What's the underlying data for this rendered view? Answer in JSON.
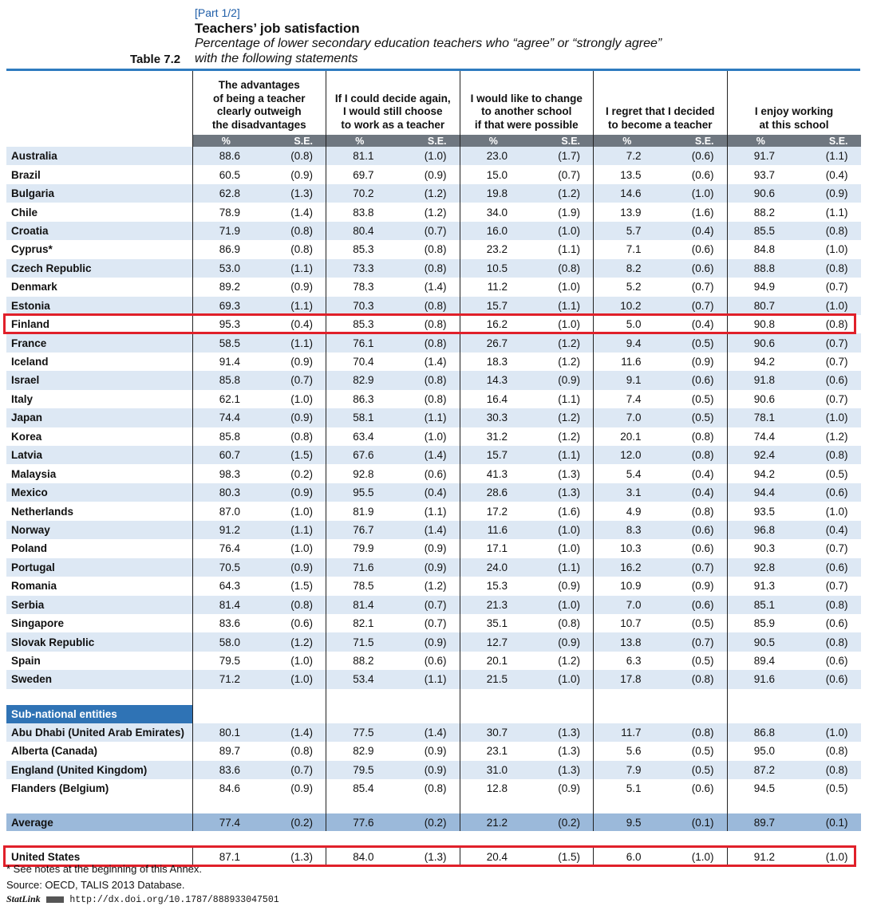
{
  "header": {
    "part": "[Part 1/2]",
    "title": "Teachers’ job satisfaction",
    "subtitle_line1": "Percentage of lower secondary education teachers who “agree” or “strongly agree”",
    "subtitle_line2": "with the following statements",
    "table_number": "Table 7.2"
  },
  "questions": [
    "The advantages\nof being a teacher\nclearly outweigh\nthe disadvantages",
    "If I could decide again,\nI would still choose\nto work as a teacher",
    "I would like to change\nto another school\nif that were possible",
    "I regret that I decided\nto become a teacher",
    "I enjoy working\nat this school"
  ],
  "subheader": {
    "pct": "%",
    "se": "S.E."
  },
  "countries": [
    {
      "name": "Australia",
      "values": [
        "88.6",
        "(0.8)",
        "81.1",
        "(1.0)",
        "23.0",
        "(1.7)",
        "7.2",
        "(0.6)",
        "91.7",
        "(1.1)"
      ]
    },
    {
      "name": "Brazil",
      "values": [
        "60.5",
        "(0.9)",
        "69.7",
        "(0.9)",
        "15.0",
        "(0.7)",
        "13.5",
        "(0.6)",
        "93.7",
        "(0.4)"
      ]
    },
    {
      "name": "Bulgaria",
      "values": [
        "62.8",
        "(1.3)",
        "70.2",
        "(1.2)",
        "19.8",
        "(1.2)",
        "14.6",
        "(1.0)",
        "90.6",
        "(0.9)"
      ]
    },
    {
      "name": "Chile",
      "values": [
        "78.9",
        "(1.4)",
        "83.8",
        "(1.2)",
        "34.0",
        "(1.9)",
        "13.9",
        "(1.6)",
        "88.2",
        "(1.1)"
      ]
    },
    {
      "name": "Croatia",
      "values": [
        "71.9",
        "(0.8)",
        "80.4",
        "(0.7)",
        "16.0",
        "(1.0)",
        "5.7",
        "(0.4)",
        "85.5",
        "(0.8)"
      ]
    },
    {
      "name": "Cyprus*",
      "values": [
        "86.9",
        "(0.8)",
        "85.3",
        "(0.8)",
        "23.2",
        "(1.1)",
        "7.1",
        "(0.6)",
        "84.8",
        "(1.0)"
      ]
    },
    {
      "name": "Czech Republic",
      "values": [
        "53.0",
        "(1.1)",
        "73.3",
        "(0.8)",
        "10.5",
        "(0.8)",
        "8.2",
        "(0.6)",
        "88.8",
        "(0.8)"
      ]
    },
    {
      "name": "Denmark",
      "values": [
        "89.2",
        "(0.9)",
        "78.3",
        "(1.4)",
        "11.2",
        "(1.0)",
        "5.2",
        "(0.7)",
        "94.9",
        "(0.7)"
      ]
    },
    {
      "name": "Estonia",
      "values": [
        "69.3",
        "(1.1)",
        "70.3",
        "(0.8)",
        "15.7",
        "(1.1)",
        "10.2",
        "(0.7)",
        "80.7",
        "(1.0)"
      ]
    },
    {
      "name": "Finland",
      "values": [
        "95.3",
        "(0.4)",
        "85.3",
        "(0.8)",
        "16.2",
        "(1.0)",
        "5.0",
        "(0.4)",
        "90.8",
        "(0.8)"
      ]
    },
    {
      "name": "France",
      "values": [
        "58.5",
        "(1.1)",
        "76.1",
        "(0.8)",
        "26.7",
        "(1.2)",
        "9.4",
        "(0.5)",
        "90.6",
        "(0.7)"
      ]
    },
    {
      "name": "Iceland",
      "values": [
        "91.4",
        "(0.9)",
        "70.4",
        "(1.4)",
        "18.3",
        "(1.2)",
        "11.6",
        "(0.9)",
        "94.2",
        "(0.7)"
      ]
    },
    {
      "name": "Israel",
      "values": [
        "85.8",
        "(0.7)",
        "82.9",
        "(0.8)",
        "14.3",
        "(0.9)",
        "9.1",
        "(0.6)",
        "91.8",
        "(0.6)"
      ]
    },
    {
      "name": "Italy",
      "values": [
        "62.1",
        "(1.0)",
        "86.3",
        "(0.8)",
        "16.4",
        "(1.1)",
        "7.4",
        "(0.5)",
        "90.6",
        "(0.7)"
      ]
    },
    {
      "name": "Japan",
      "values": [
        "74.4",
        "(0.9)",
        "58.1",
        "(1.1)",
        "30.3",
        "(1.2)",
        "7.0",
        "(0.5)",
        "78.1",
        "(1.0)"
      ]
    },
    {
      "name": "Korea",
      "values": [
        "85.8",
        "(0.8)",
        "63.4",
        "(1.0)",
        "31.2",
        "(1.2)",
        "20.1",
        "(0.8)",
        "74.4",
        "(1.2)"
      ]
    },
    {
      "name": "Latvia",
      "values": [
        "60.7",
        "(1.5)",
        "67.6",
        "(1.4)",
        "15.7",
        "(1.1)",
        "12.0",
        "(0.8)",
        "92.4",
        "(0.8)"
      ]
    },
    {
      "name": "Malaysia",
      "values": [
        "98.3",
        "(0.2)",
        "92.8",
        "(0.6)",
        "41.3",
        "(1.3)",
        "5.4",
        "(0.4)",
        "94.2",
        "(0.5)"
      ]
    },
    {
      "name": "Mexico",
      "values": [
        "80.3",
        "(0.9)",
        "95.5",
        "(0.4)",
        "28.6",
        "(1.3)",
        "3.1",
        "(0.4)",
        "94.4",
        "(0.6)"
      ]
    },
    {
      "name": "Netherlands",
      "values": [
        "87.0",
        "(1.0)",
        "81.9",
        "(1.1)",
        "17.2",
        "(1.6)",
        "4.9",
        "(0.8)",
        "93.5",
        "(1.0)"
      ]
    },
    {
      "name": "Norway",
      "values": [
        "91.2",
        "(1.1)",
        "76.7",
        "(1.4)",
        "11.6",
        "(1.0)",
        "8.3",
        "(0.6)",
        "96.8",
        "(0.4)"
      ]
    },
    {
      "name": "Poland",
      "values": [
        "76.4",
        "(1.0)",
        "79.9",
        "(0.9)",
        "17.1",
        "(1.0)",
        "10.3",
        "(0.6)",
        "90.3",
        "(0.7)"
      ]
    },
    {
      "name": "Portugal",
      "values": [
        "70.5",
        "(0.9)",
        "71.6",
        "(0.9)",
        "24.0",
        "(1.1)",
        "16.2",
        "(0.7)",
        "92.8",
        "(0.6)"
      ]
    },
    {
      "name": "Romania",
      "values": [
        "64.3",
        "(1.5)",
        "78.5",
        "(1.2)",
        "15.3",
        "(0.9)",
        "10.9",
        "(0.9)",
        "91.3",
        "(0.7)"
      ]
    },
    {
      "name": "Serbia",
      "values": [
        "81.4",
        "(0.8)",
        "81.4",
        "(0.7)",
        "21.3",
        "(1.0)",
        "7.0",
        "(0.6)",
        "85.1",
        "(0.8)"
      ]
    },
    {
      "name": "Singapore",
      "values": [
        "83.6",
        "(0.6)",
        "82.1",
        "(0.7)",
        "35.1",
        "(0.8)",
        "10.7",
        "(0.5)",
        "85.9",
        "(0.6)"
      ]
    },
    {
      "name": "Slovak Republic",
      "values": [
        "58.0",
        "(1.2)",
        "71.5",
        "(0.9)",
        "12.7",
        "(0.9)",
        "13.8",
        "(0.7)",
        "90.5",
        "(0.8)"
      ]
    },
    {
      "name": "Spain",
      "values": [
        "79.5",
        "(1.0)",
        "88.2",
        "(0.6)",
        "20.1",
        "(1.2)",
        "6.3",
        "(0.5)",
        "89.4",
        "(0.6)"
      ]
    },
    {
      "name": "Sweden",
      "values": [
        "71.2",
        "(1.0)",
        "53.4",
        "(1.1)",
        "21.5",
        "(1.0)",
        "17.8",
        "(0.8)",
        "91.6",
        "(0.6)"
      ]
    }
  ],
  "subnational_label": "Sub-national entities",
  "subnational": [
    {
      "name": "Abu Dhabi (United Arab Emirates)",
      "values": [
        "80.1",
        "(1.4)",
        "77.5",
        "(1.4)",
        "30.7",
        "(1.3)",
        "11.7",
        "(0.8)",
        "86.8",
        "(1.0)"
      ]
    },
    {
      "name": "Alberta (Canada)",
      "values": [
        "89.7",
        "(0.8)",
        "82.9",
        "(0.9)",
        "23.1",
        "(1.3)",
        "5.6",
        "(0.5)",
        "95.0",
        "(0.8)"
      ]
    },
    {
      "name": "England (United Kingdom)",
      "values": [
        "83.6",
        "(0.7)",
        "79.5",
        "(0.9)",
        "31.0",
        "(1.3)",
        "7.9",
        "(0.5)",
        "87.2",
        "(0.8)"
      ]
    },
    {
      "name": "Flanders (Belgium)",
      "values": [
        "84.6",
        "(0.9)",
        "85.4",
        "(0.8)",
        "12.8",
        "(0.9)",
        "5.1",
        "(0.6)",
        "94.5",
        "(0.5)"
      ]
    }
  ],
  "average": {
    "name": "Average",
    "values": [
      "77.4",
      "(0.2)",
      "77.6",
      "(0.2)",
      "21.2",
      "(0.2)",
      "9.5",
      "(0.1)",
      "89.7",
      "(0.1)"
    ]
  },
  "united_states": {
    "name": "United States",
    "values": [
      "87.1",
      "(1.3)",
      "84.0",
      "(1.3)",
      "20.4",
      "(1.5)",
      "6.0",
      "(1.0)",
      "91.2",
      "(1.0)"
    ]
  },
  "highlight_color": "#e0202a",
  "footer": {
    "note": "* See notes at the beginning of this Annex.",
    "source": "Source: OECD, TALIS 2013 Database.",
    "statlink_label": "StatLink",
    "statlink_url": "http://dx.doi.org/10.1787/888933047501"
  }
}
